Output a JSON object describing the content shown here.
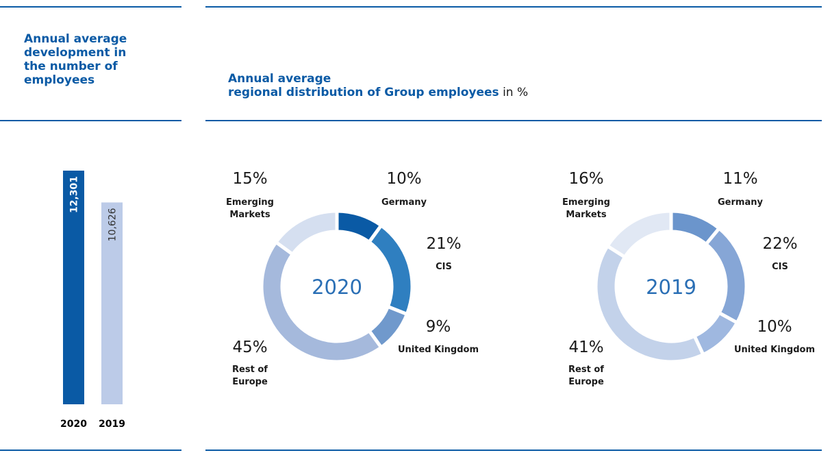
{
  "chart_data": [
    {
      "type": "bar",
      "title": "Annual average development in the number of employees",
      "categories": [
        "2020",
        "2019"
      ],
      "values": [
        12301,
        10626
      ],
      "value_labels": [
        "12,301",
        "10,626"
      ],
      "colors": [
        "#0a5aa5",
        "#bccbe8"
      ],
      "label_colors": [
        "#ffffff",
        "#333333"
      ]
    },
    {
      "type": "pie",
      "center_label": "2020",
      "categories": [
        "Germany",
        "CIS",
        "United Kingdom",
        "Rest of Europe",
        "Emerging Markets"
      ],
      "values": [
        10,
        21,
        9,
        45,
        15
      ],
      "value_labels": [
        "10%",
        "21%",
        "9%",
        "45%",
        "15%"
      ],
      "colors": [
        "#0a5aa5",
        "#2f7fc0",
        "#7099cc",
        "#a5b9dc",
        "#d5dff0"
      ]
    },
    {
      "type": "pie",
      "center_label": "2019",
      "categories": [
        "Germany",
        "CIS",
        "United Kingdom",
        "Rest of Europe",
        "Emerging Markets"
      ],
      "values": [
        11,
        22,
        10,
        41,
        16
      ],
      "value_labels": [
        "11%",
        "22%",
        "10%",
        "41%",
        "16%"
      ],
      "colors": [
        "#6b95cc",
        "#86a6d6",
        "#9fb8e0",
        "#c3d2ea",
        "#e1e8f4"
      ]
    }
  ],
  "header": {
    "title_lines": [
      "Annual average",
      "regional distribution of Group employees"
    ],
    "unit": "in %"
  }
}
